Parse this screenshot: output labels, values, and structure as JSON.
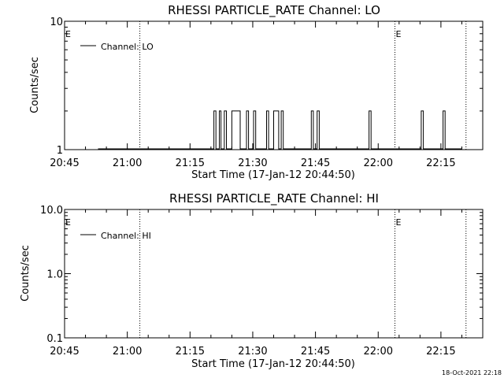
{
  "footer_timestamp": "18-Oct-2021 22:18",
  "chart_data": [
    {
      "type": "line",
      "title": "RHESSI PARTICLE_RATE Channel: LO",
      "xlabel": "Start Time (17-Jan-12 20:44:50)",
      "ylabel": "Counts/sec",
      "yscale": "log",
      "ylim": [
        1,
        10
      ],
      "ytick_labels": [
        "1",
        "10"
      ],
      "xlim": [
        "20:45",
        "22:25"
      ],
      "xtick_labels": [
        "20:45",
        "21:00",
        "21:15",
        "21:30",
        "21:45",
        "22:00",
        "22:15"
      ],
      "grid": false,
      "legend_position": "top-left",
      "legend": [
        "Channel: LO"
      ],
      "event_lines": [
        {
          "time": "21:03",
          "label": "E"
        },
        {
          "time": "22:04",
          "label": "E"
        },
        {
          "time": "22:21",
          "label": ""
        }
      ],
      "series": [
        {
          "name": "Channel: LO",
          "baseline": 1,
          "spikes": [
            {
              "start": "21:20.7",
              "end": "21:21.2",
              "value": 2
            },
            {
              "start": "21:22.0",
              "end": "21:22.4",
              "value": 2
            },
            {
              "start": "21:23.2",
              "end": "21:23.7",
              "value": 2
            },
            {
              "start": "21:25.0",
              "end": "21:27.0",
              "value": 2
            },
            {
              "start": "21:28.5",
              "end": "21:29.0",
              "value": 2
            },
            {
              "start": "21:30.2",
              "end": "21:30.7",
              "value": 2
            },
            {
              "start": "21:33.3",
              "end": "21:33.8",
              "value": 2
            },
            {
              "start": "21:35.0",
              "end": "21:36.2",
              "value": 2
            },
            {
              "start": "21:36.8",
              "end": "21:37.3",
              "value": 2
            },
            {
              "start": "21:44.0",
              "end": "21:44.5",
              "value": 2
            },
            {
              "start": "21:45.4",
              "end": "21:45.9",
              "value": 2
            },
            {
              "start": "21:57.8",
              "end": "21:58.3",
              "value": 2
            },
            {
              "start": "22:10.3",
              "end": "22:10.8",
              "value": 2
            },
            {
              "start": "22:15.5",
              "end": "22:16.0",
              "value": 2
            }
          ]
        }
      ]
    },
    {
      "type": "line",
      "title": "RHESSI PARTICLE_RATE Channel: HI",
      "xlabel": "Start Time (17-Jan-12 20:44:50)",
      "ylabel": "Counts/sec",
      "yscale": "log",
      "ylim": [
        0.1,
        10
      ],
      "ytick_labels": [
        "0.1",
        "1.0",
        "10.0"
      ],
      "xlim": [
        "20:45",
        "22:25"
      ],
      "xtick_labels": [
        "20:45",
        "21:00",
        "21:15",
        "21:30",
        "21:45",
        "22:00",
        "22:15"
      ],
      "grid": false,
      "legend_position": "top-left",
      "legend": [
        "Channel: HI"
      ],
      "event_lines": [
        {
          "time": "21:03",
          "label": "E"
        },
        {
          "time": "22:04",
          "label": "E"
        },
        {
          "time": "22:21",
          "label": ""
        }
      ],
      "series": [
        {
          "name": "Channel: HI",
          "baseline": null,
          "spikes": []
        }
      ]
    }
  ]
}
